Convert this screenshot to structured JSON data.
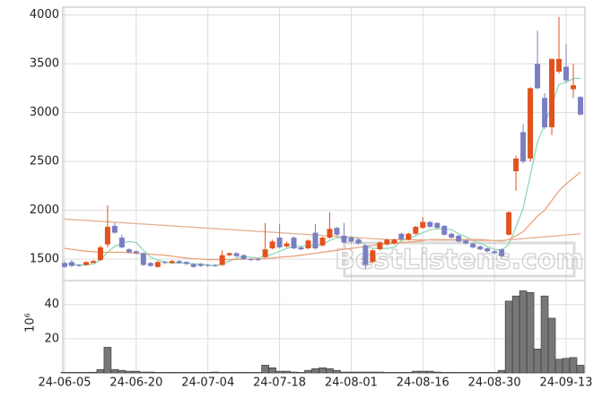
{
  "chart_data": {
    "type": "candlestick",
    "categories": [
      "24-06-05",
      null,
      null,
      null,
      null,
      null,
      null,
      null,
      null,
      null,
      "24-06-20",
      null,
      null,
      null,
      null,
      null,
      null,
      null,
      null,
      null,
      "24-07-04",
      null,
      null,
      null,
      null,
      null,
      null,
      null,
      null,
      null,
      "24-07-18",
      null,
      null,
      null,
      null,
      null,
      null,
      null,
      null,
      null,
      "24-08-01",
      null,
      null,
      null,
      null,
      null,
      null,
      null,
      null,
      null,
      "24-08-16",
      null,
      null,
      null,
      null,
      null,
      null,
      null,
      null,
      null,
      "24-08-30",
      null,
      null,
      null,
      null,
      null,
      null,
      null,
      null,
      null,
      "24-09-13",
      null,
      null
    ],
    "open": [
      1460,
      1470,
      1440,
      1440,
      1460,
      1490,
      1650,
      1840,
      1720,
      1600,
      1580,
      1560,
      1460,
      1420,
      1470,
      1460,
      1480,
      1470,
      1450,
      1450,
      1440,
      1440,
      1440,
      1540,
      1560,
      1540,
      1500,
      1500,
      1520,
      1610,
      1720,
      1630,
      1720,
      1620,
      1610,
      1770,
      1640,
      1720,
      1820,
      1740,
      1720,
      1700,
      1640,
      1470,
      1600,
      1650,
      1660,
      1760,
      1700,
      1760,
      1820,
      1880,
      1870,
      1840,
      1760,
      1740,
      1690,
      1660,
      1630,
      1610,
      1580,
      1600,
      1750,
      2400,
      2800,
      2530,
      3500,
      3150,
      2850,
      3420,
      3470,
      3240,
      3160
    ],
    "high": [
      1480,
      1490,
      1450,
      1480,
      1490,
      1640,
      2050,
      1870,
      1750,
      1610,
      1590,
      1570,
      1470,
      1480,
      1480,
      1490,
      1490,
      1480,
      1460,
      1460,
      1450,
      1450,
      1590,
      1570,
      1570,
      1550,
      1510,
      1510,
      1870,
      1700,
      1860,
      1680,
      1730,
      1630,
      1700,
      1860,
      1730,
      1980,
      1830,
      1870,
      1730,
      1710,
      1650,
      1600,
      1680,
      1710,
      1710,
      1770,
      1770,
      1840,
      1930,
      1890,
      1880,
      1850,
      1770,
      1750,
      1700,
      1670,
      1640,
      1620,
      1590,
      1610,
      1990,
      2560,
      2880,
      3260,
      3840,
      3200,
      3550,
      3980,
      3700,
      3500,
      3170
    ],
    "low": [
      1410,
      1420,
      1420,
      1430,
      1460,
      1480,
      1620,
      1760,
      1610,
      1560,
      1550,
      1430,
      1420,
      1410,
      1450,
      1450,
      1450,
      1440,
      1410,
      1420,
      1420,
      1420,
      1430,
      1530,
      1520,
      1490,
      1480,
      1480,
      1510,
      1600,
      1610,
      1620,
      1600,
      1590,
      1600,
      1600,
      1630,
      1710,
      1740,
      1660,
      1670,
      1650,
      1400,
      1460,
      1590,
      1640,
      1650,
      1690,
      1690,
      1750,
      1810,
      1820,
      1810,
      1740,
      1710,
      1670,
      1650,
      1610,
      1590,
      1570,
      1550,
      1520,
      1740,
      2200,
      2480,
      2500,
      3240,
      2830,
      2770,
      3400,
      3310,
      3150,
      2970
    ],
    "close": [
      1420,
      1430,
      1430,
      1470,
      1480,
      1620,
      1830,
      1770,
      1620,
      1570,
      1560,
      1440,
      1430,
      1470,
      1460,
      1480,
      1460,
      1450,
      1420,
      1430,
      1430,
      1430,
      1540,
      1560,
      1530,
      1500,
      1490,
      1490,
      1600,
      1680,
      1620,
      1660,
      1610,
      1600,
      1690,
      1610,
      1720,
      1810,
      1750,
      1670,
      1680,
      1660,
      1440,
      1590,
      1670,
      1700,
      1700,
      1700,
      1760,
      1830,
      1880,
      1830,
      1820,
      1750,
      1720,
      1680,
      1660,
      1620,
      1600,
      1580,
      1560,
      1530,
      1980,
      2530,
      2500,
      3250,
      3250,
      2850,
      3550,
      3550,
      3330,
      3280,
      2980
    ],
    "up_color": "#e2521c",
    "down_color": "#7a7fc2",
    "lines": [
      {
        "color": "#8fd9b6",
        "values": [
          1450,
          1450,
          1440,
          1440,
          1450,
          1490,
          1570,
          1630,
          1660,
          1680,
          1670,
          1590,
          1520,
          1490,
          1470,
          1460,
          1460,
          1460,
          1450,
          1450,
          1440,
          1430,
          1450,
          1480,
          1510,
          1530,
          1520,
          1510,
          1530,
          1550,
          1580,
          1610,
          1630,
          1630,
          1640,
          1640,
          1650,
          1690,
          1720,
          1710,
          1730,
          1710,
          1640,
          1610,
          1610,
          1610,
          1620,
          1690,
          1710,
          1740,
          1770,
          1800,
          1810,
          1810,
          1800,
          1760,
          1730,
          1690,
          1660,
          1630,
          1600,
          1590,
          1650,
          1830,
          2020,
          2360,
          2700,
          2880,
          3080,
          3290,
          3310,
          3350,
          3350
        ]
      },
      {
        "color": "#eaa27c",
        "values": [
          1610,
          1600,
          1590,
          1580,
          1575,
          1570,
          1570,
          1570,
          1570,
          1565,
          1560,
          1555,
          1550,
          1545,
          1540,
          1530,
          1520,
          1510,
          1505,
          1500,
          1495,
          1495,
          1495,
          1495,
          1495,
          1500,
          1500,
          1500,
          1505,
          1510,
          1520,
          1525,
          1530,
          1540,
          1550,
          1560,
          1570,
          1580,
          1590,
          1600,
          1610,
          1620,
          1630,
          1640,
          1650,
          1660,
          1665,
          1670,
          1675,
          1680,
          1690,
          1700,
          1700,
          1700,
          1700,
          1700,
          1700,
          1700,
          1700,
          1695,
          1690,
          1685,
          1700,
          1740,
          1780,
          1860,
          1940,
          2000,
          2100,
          2200,
          2270,
          2330,
          2390
        ]
      },
      {
        "color": "#e4b092",
        "values": [
          1910,
          1905,
          1901,
          1896,
          1891,
          1887,
          1882,
          1877,
          1873,
          1868,
          1863,
          1859,
          1854,
          1849,
          1845,
          1840,
          1835,
          1831,
          1826,
          1821,
          1817,
          1812,
          1807,
          1803,
          1798,
          1793,
          1789,
          1784,
          1779,
          1775,
          1770,
          1765,
          1761,
          1756,
          1751,
          1747,
          1742,
          1737,
          1733,
          1728,
          1723,
          1719,
          1714,
          1709,
          1705,
          1700,
          1699,
          1699,
          1698,
          1697,
          1697,
          1696,
          1695,
          1695,
          1694,
          1693,
          1693,
          1692,
          1691,
          1691,
          1690,
          1692,
          1697,
          1703,
          1709,
          1716,
          1722,
          1728,
          1734,
          1740,
          1747,
          1753,
          1760
        ]
      }
    ],
    "ylim": [
      1280,
      4080
    ],
    "yticks": [
      1500,
      2000,
      2500,
      3000,
      3500,
      4000
    ],
    "grid": true,
    "volume": {
      "color": "#777777",
      "unit_label": "10⁶",
      "ylim": [
        0,
        54
      ],
      "yticks": [
        20,
        40
      ],
      "values": [
        0.3,
        0.3,
        0.3,
        0.3,
        0.4,
        2,
        15,
        2,
        1.5,
        1,
        1,
        0.5,
        0.5,
        0.3,
        0.3,
        0.3,
        0.3,
        0.3,
        0.3,
        0.3,
        0.3,
        0.5,
        0.3,
        0.3,
        0.3,
        0.3,
        0.3,
        0.3,
        4.5,
        3,
        1,
        1,
        0.5,
        0.3,
        1.5,
        2.5,
        3,
        2.5,
        1.5,
        0.5,
        0.5,
        0.5,
        0.5,
        0.5,
        0.5,
        0.3,
        0.3,
        0.3,
        0.3,
        1,
        1,
        1,
        0.5,
        0.3,
        0.3,
        0.3,
        0.3,
        0.3,
        0.3,
        0.3,
        0.3,
        1.5,
        42,
        45,
        48,
        47,
        14,
        45,
        32,
        8,
        8.5,
        9,
        4.5
      ]
    },
    "watermark": "BestListens.com"
  }
}
